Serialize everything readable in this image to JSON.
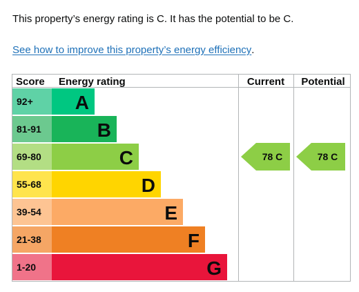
{
  "summary_text": "This property’s energy rating is C. It has the potential to be C.",
  "improve_link": "See how to improve this property’s energy efficiency",
  "link_period": ".",
  "table": {
    "headers": {
      "score": "Score",
      "energy_rating": "Energy rating",
      "current": "Current",
      "potential": "Potential"
    },
    "bands": [
      {
        "score": "92+",
        "letter": "A",
        "color": "#00c781",
        "score_bg": "#5fd2a6"
      },
      {
        "score": "81-91",
        "letter": "B",
        "color": "#19b459",
        "score_bg": "#6cc98f"
      },
      {
        "score": "69-80",
        "letter": "C",
        "color": "#8dce46",
        "score_bg": "#b3de84"
      },
      {
        "score": "55-68",
        "letter": "D",
        "color": "#ffd500",
        "score_bg": "#ffe44d"
      },
      {
        "score": "39-54",
        "letter": "E",
        "color": "#fcaa65",
        "score_bg": "#fdc493"
      },
      {
        "score": "21-38",
        "letter": "F",
        "color": "#ef8023",
        "score_bg": "#f5a665"
      },
      {
        "score": "1-20",
        "letter": "G",
        "color": "#e9153b",
        "score_bg": "#f07389"
      }
    ],
    "current": {
      "value": 78,
      "letter": "C",
      "label": "78 C",
      "color": "#8dce46",
      "band_index": 2
    },
    "potential": {
      "value": 78,
      "letter": "C",
      "label": "78 C",
      "color": "#8dce46",
      "band_index": 2
    }
  }
}
